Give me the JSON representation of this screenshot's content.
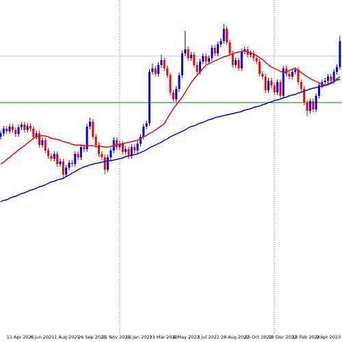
{
  "chart_data": {
    "type": "candlestick",
    "up_color": "#0000ff",
    "down_color": "#ff0000",
    "ylim": [
      0,
      487
    ],
    "hlines": [
      {
        "value": 337,
        "color": "#008000"
      },
      {
        "value": 405,
        "color": "#c8c8c8"
      }
    ],
    "categories": [
      null,
      null,
      "11 Apr 2021",
      null,
      null,
      null,
      null,
      null,
      null,
      null,
      "6 Jun 2021",
      null,
      null,
      null,
      null,
      null,
      null,
      null,
      "1 Aug 2021",
      null,
      null,
      null,
      null,
      null,
      null,
      null,
      "26 Sep 2021",
      null,
      null,
      null,
      null,
      null,
      null,
      null,
      "21 Nov 2021",
      null,
      null,
      null,
      null,
      null,
      null,
      null,
      "16 Jan 2022",
      null,
      null,
      null,
      null,
      null,
      null,
      null,
      "13 Mar 2022",
      null,
      null,
      null,
      null,
      null,
      null,
      null,
      "8 May 2022",
      null,
      null,
      null,
      null,
      null,
      null,
      null,
      "3 Jul 2022",
      null,
      null,
      null,
      null,
      null,
      null,
      null,
      "28 Aug 2022",
      null,
      null,
      null,
      null,
      null,
      null,
      null,
      "23 Oct 2022",
      null,
      null,
      null,
      null,
      null,
      null,
      null,
      "18 Dec 2022",
      null,
      null,
      null,
      null,
      null,
      null,
      null,
      "12 Feb 2023",
      null,
      null,
      null,
      null,
      null,
      null,
      null,
      "9 Apr 2023",
      null,
      null,
      null,
      null,
      null,
      null,
      null,
      null
    ],
    "candles": [
      [
        287,
        296,
        283,
        292
      ],
      [
        292,
        303,
        288,
        299
      ],
      [
        299,
        303,
        291,
        295
      ],
      [
        295,
        306,
        291,
        302
      ],
      [
        302,
        306,
        293,
        297
      ],
      [
        297,
        301,
        287,
        291
      ],
      [
        291,
        305,
        287,
        301
      ],
      [
        301,
        309,
        297,
        305
      ],
      [
        305,
        309,
        293,
        297
      ],
      [
        297,
        307,
        293,
        303
      ],
      [
        303,
        307,
        295,
        299
      ],
      [
        299,
        303,
        283,
        287
      ],
      [
        287,
        296,
        283,
        292
      ],
      [
        292,
        296,
        271,
        275
      ],
      [
        275,
        286,
        271,
        282
      ],
      [
        282,
        286,
        263,
        267
      ],
      [
        267,
        271,
        255,
        259
      ],
      [
        259,
        263,
        251,
        255
      ],
      [
        255,
        266,
        251,
        262
      ],
      [
        262,
        266,
        243,
        247
      ],
      [
        247,
        255,
        243,
        251
      ],
      [
        251,
        255,
        225,
        232
      ],
      [
        232,
        246,
        228,
        242
      ],
      [
        242,
        253,
        238,
        249
      ],
      [
        249,
        253,
        243,
        247
      ],
      [
        247,
        266,
        243,
        262
      ],
      [
        262,
        266,
        253,
        257
      ],
      [
        257,
        276,
        253,
        272
      ],
      [
        272,
        276,
        265,
        269
      ],
      [
        269,
        306,
        265,
        302
      ],
      [
        302,
        315,
        298,
        309
      ],
      [
        309,
        313,
        283,
        287
      ],
      [
        287,
        291,
        271,
        275
      ],
      [
        275,
        279,
        258,
        262
      ],
      [
        262,
        266,
        253,
        257
      ],
      [
        257,
        261,
        232,
        239
      ],
      [
        239,
        261,
        235,
        257
      ],
      [
        257,
        271,
        253,
        267
      ],
      [
        267,
        286,
        263,
        282
      ],
      [
        282,
        286,
        268,
        272
      ],
      [
        272,
        281,
        268,
        277
      ],
      [
        277,
        281,
        261,
        265
      ],
      [
        265,
        273,
        261,
        269
      ],
      [
        269,
        273,
        255,
        259
      ],
      [
        259,
        276,
        255,
        272
      ],
      [
        272,
        276,
        263,
        267
      ],
      [
        267,
        281,
        263,
        277
      ],
      [
        277,
        291,
        273,
        287
      ],
      [
        287,
        306,
        283,
        302
      ],
      [
        302,
        311,
        298,
        307
      ],
      [
        307,
        386,
        303,
        382
      ],
      [
        382,
        394,
        378,
        387
      ],
      [
        387,
        391,
        375,
        379
      ],
      [
        379,
        396,
        375,
        392
      ],
      [
        392,
        407,
        388,
        399
      ],
      [
        399,
        403,
        383,
        387
      ],
      [
        387,
        391,
        373,
        377
      ],
      [
        377,
        381,
        348,
        352
      ],
      [
        352,
        356,
        338,
        342
      ],
      [
        342,
        361,
        338,
        357
      ],
      [
        357,
        381,
        353,
        377
      ],
      [
        377,
        413,
        373,
        409
      ],
      [
        409,
        442,
        405,
        415
      ],
      [
        415,
        419,
        398,
        402
      ],
      [
        402,
        411,
        398,
        407
      ],
      [
        407,
        411,
        388,
        392
      ],
      [
        392,
        396,
        378,
        382
      ],
      [
        382,
        401,
        378,
        397
      ],
      [
        397,
        409,
        393,
        405
      ],
      [
        405,
        409,
        393,
        397
      ],
      [
        397,
        406,
        393,
        402
      ],
      [
        402,
        421,
        398,
        417
      ],
      [
        417,
        421,
        405,
        409
      ],
      [
        409,
        426,
        405,
        422
      ],
      [
        422,
        431,
        418,
        427
      ],
      [
        427,
        452,
        423,
        445
      ],
      [
        445,
        449,
        421,
        425
      ],
      [
        425,
        429,
        405,
        409
      ],
      [
        409,
        413,
        388,
        392
      ],
      [
        392,
        403,
        388,
        399
      ],
      [
        399,
        403,
        383,
        387
      ],
      [
        387,
        416,
        383,
        412
      ],
      [
        412,
        419,
        408,
        415
      ],
      [
        415,
        419,
        403,
        407
      ],
      [
        407,
        413,
        403,
        409
      ],
      [
        409,
        413,
        398,
        402
      ],
      [
        402,
        406,
        393,
        397
      ],
      [
        397,
        401,
        375,
        379
      ],
      [
        379,
        383,
        371,
        375
      ],
      [
        375,
        379,
        351,
        355
      ],
      [
        355,
        373,
        351,
        369
      ],
      [
        369,
        373,
        358,
        362
      ],
      [
        362,
        366,
        348,
        352
      ],
      [
        352,
        371,
        348,
        367
      ],
      [
        367,
        371,
        343,
        347
      ],
      [
        347,
        391,
        343,
        387
      ],
      [
        387,
        391,
        375,
        379
      ],
      [
        379,
        383,
        371,
        375
      ],
      [
        375,
        386,
        371,
        382
      ],
      [
        382,
        389,
        378,
        385
      ],
      [
        385,
        389,
        363,
        367
      ],
      [
        367,
        371,
        353,
        357
      ],
      [
        357,
        361,
        333,
        337
      ],
      [
        337,
        341,
        317,
        325
      ],
      [
        325,
        343,
        321,
        339
      ],
      [
        339,
        343,
        323,
        327
      ],
      [
        327,
        351,
        323,
        347
      ],
      [
        347,
        366,
        343,
        362
      ],
      [
        362,
        371,
        358,
        367
      ],
      [
        367,
        373,
        363,
        369
      ],
      [
        369,
        379,
        365,
        375
      ],
      [
        375,
        379,
        365,
        369
      ],
      [
        369,
        386,
        365,
        382
      ],
      [
        382,
        393,
        378,
        389
      ],
      [
        389,
        435,
        385,
        427
      ]
    ],
    "series": [
      {
        "color": "#ff0000",
        "values": [
          247,
          250,
          254,
          257,
          261,
          264,
          268,
          271,
          274,
          278,
          281,
          285,
          287,
          288,
          289,
          288,
          287,
          285,
          284,
          283,
          282,
          280,
          279,
          278,
          276,
          275,
          275,
          275,
          274,
          274,
          274,
          274,
          273,
          273,
          273,
          272,
          272,
          273,
          274,
          275,
          276,
          277,
          278,
          279,
          280,
          281,
          282,
          284,
          287,
          289,
          292,
          294,
          297,
          300,
          303,
          306,
          314,
          321,
          328,
          334,
          339,
          345,
          352,
          359,
          366,
          372,
          377,
          382,
          387,
          392,
          394,
          396,
          398,
          400,
          402,
          404,
          405,
          407,
          408,
          410,
          411,
          412,
          412,
          411,
          410,
          408,
          406,
          403,
          400,
          396,
          392,
          389,
          387,
          385,
          383,
          381,
          382,
          384,
          386,
          387,
          384,
          381,
          378,
          375,
          372,
          370,
          368,
          366,
          364,
          362,
          363,
          365,
          367,
          372,
          375
        ]
      },
      {
        "color": "#0000dd",
        "values": [
          192,
          194,
          195,
          197,
          199,
          200,
          202,
          204,
          205,
          207,
          209,
          210,
          212,
          214,
          215,
          217,
          219,
          221,
          222,
          224,
          225,
          226,
          229,
          231,
          234,
          236,
          239,
          241,
          243,
          244,
          246,
          247,
          248,
          249,
          250,
          251,
          252,
          252,
          253,
          254,
          255,
          256,
          258,
          259,
          260,
          261,
          262,
          264,
          266,
          268,
          271,
          273,
          275,
          277,
          279,
          282,
          284,
          287,
          289,
          291,
          293,
          295,
          297,
          300,
          302,
          303,
          305,
          307,
          308,
          310,
          312,
          313,
          315,
          316,
          317,
          318,
          319,
          320,
          321,
          322,
          323,
          324,
          326,
          327,
          328,
          330,
          331,
          332,
          334,
          335,
          337,
          338,
          340,
          341,
          342,
          344,
          345,
          347,
          348,
          349,
          351,
          352,
          354,
          355,
          357,
          358,
          359,
          360,
          361,
          362,
          364,
          366,
          368,
          370,
          371
        ]
      }
    ]
  }
}
